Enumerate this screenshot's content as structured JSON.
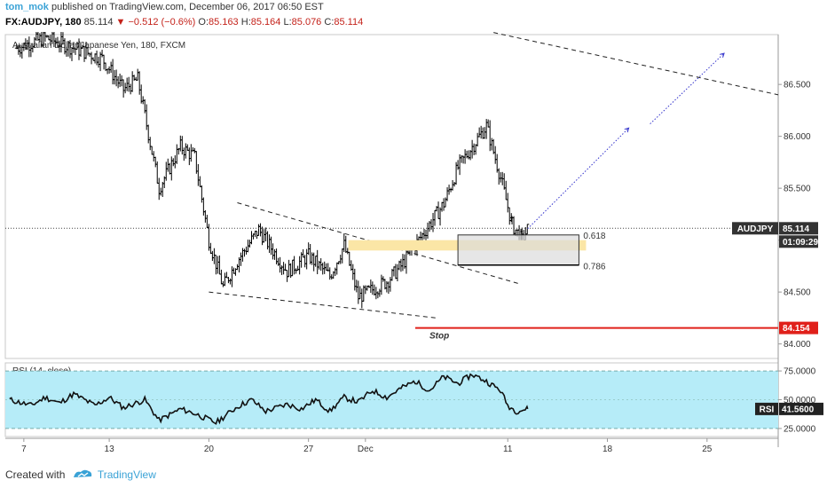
{
  "header": {
    "user": "tom_mok",
    "published_text": "published on TradingView.com, December 06, 2017 06:50 EST",
    "symbol": "FX:AUDJPY, 180",
    "last": "85.114",
    "change": "−0.512 (−0.6%)",
    "o_label": "O:",
    "o_value": "85.163",
    "h_label": "H:",
    "h_value": "85.164",
    "l_label": "L:",
    "l_value": "85.076",
    "c_label": "C:",
    "c_value": "85.114"
  },
  "footer": {
    "created_with": "Created with",
    "brand": "TradingView"
  },
  "colors": {
    "price_bar": "#000000",
    "stop": "#e0201a",
    "rsi_fill": "#b6ecf8",
    "fib_zone": "#fbe6a6",
    "box": "#dcdcdc",
    "projection": "#3333cc"
  },
  "chart_data": [
    {
      "type": "ohlc",
      "title": "Australian Dollar/Japanese Yen, 180, FXCM",
      "y_ticks": [
        84.0,
        84.5,
        85.0,
        85.5,
        86.0,
        86.5
      ],
      "y_tick_labels": [
        "84.000",
        "84.500",
        "85.000",
        "85.500",
        "86.000",
        "86.500"
      ],
      "ylim": [
        83.86,
        86.98
      ],
      "x_tick_labels": [
        "7",
        "13",
        "20",
        "27",
        "Dec",
        "11",
        "18",
        "25"
      ],
      "x_tick_days": [
        7,
        13,
        20,
        27,
        31,
        41,
        48,
        55
      ],
      "xlim_days": [
        5.7,
        60.0
      ],
      "price_tags": [
        {
          "label": "AUDJPY",
          "value": "85.114"
        },
        {
          "label": "",
          "value": "01:09:29"
        },
        {
          "label": "",
          "value": "84.154"
        }
      ],
      "current_price": 85.114,
      "stop_level": 84.154,
      "stop_label": "Stop",
      "fib_levels": [
        {
          "label": "0.618",
          "price": 85.05
        },
        {
          "label": "0.786",
          "price": 84.76
        }
      ],
      "fib_zone": [
        84.9,
        85.0
      ],
      "swing_points": [
        [
          6.5,
          86.85
        ],
        [
          8.5,
          86.95
        ],
        [
          10.5,
          86.85
        ],
        [
          12.5,
          86.75
        ],
        [
          14.0,
          86.45
        ],
        [
          15.0,
          86.55
        ],
        [
          16.5,
          85.5
        ],
        [
          18.0,
          85.9
        ],
        [
          19.0,
          85.8
        ],
        [
          20.0,
          85.0
        ],
        [
          21.0,
          84.55
        ],
        [
          22.0,
          84.8
        ],
        [
          23.5,
          85.1
        ],
        [
          24.5,
          84.9
        ],
        [
          25.5,
          84.7
        ],
        [
          27.0,
          84.85
        ],
        [
          28.5,
          84.65
        ],
        [
          29.5,
          84.95
        ],
        [
          30.5,
          84.45
        ],
        [
          32.5,
          84.6
        ],
        [
          33.5,
          84.75
        ],
        [
          35.0,
          85.05
        ],
        [
          36.5,
          85.35
        ],
        [
          37.5,
          85.7
        ],
        [
          38.5,
          85.9
        ],
        [
          39.5,
          86.1
        ],
        [
          40.5,
          85.6
        ],
        [
          41.3,
          85.15
        ],
        [
          42.0,
          85.0
        ],
        [
          42.4,
          85.11
        ]
      ]
    },
    {
      "type": "line",
      "title": "RSI (14, close)",
      "y_ticks": [
        25,
        50,
        75
      ],
      "y_tick_labels": [
        "25.0000",
        "50.0000",
        "75.0000"
      ],
      "ylim": [
        18,
        82
      ],
      "band": [
        25,
        75
      ],
      "last_label": "RSI",
      "last_value": "41.5600",
      "swing_points": [
        [
          6.0,
          50
        ],
        [
          7.5,
          45
        ],
        [
          8.5,
          52
        ],
        [
          9.5,
          47
        ],
        [
          10.5,
          55
        ],
        [
          12.0,
          45
        ],
        [
          13.0,
          52
        ],
        [
          14.0,
          43
        ],
        [
          15.5,
          50
        ],
        [
          16.5,
          32
        ],
        [
          18.0,
          42
        ],
        [
          19.0,
          38
        ],
        [
          20.5,
          30
        ],
        [
          22.0,
          44
        ],
        [
          23.0,
          50
        ],
        [
          24.0,
          40
        ],
        [
          25.5,
          46
        ],
        [
          26.5,
          42
        ],
        [
          27.5,
          50
        ],
        [
          28.5,
          40
        ],
        [
          29.5,
          52
        ],
        [
          30.5,
          48
        ],
        [
          31.5,
          58
        ],
        [
          32.5,
          52
        ],
        [
          33.5,
          60
        ],
        [
          34.5,
          66
        ],
        [
          35.5,
          58
        ],
        [
          36.5,
          70
        ],
        [
          37.5,
          64
        ],
        [
          38.5,
          72
        ],
        [
          39.5,
          66
        ],
        [
          40.5,
          58
        ],
        [
          41.0,
          45
        ],
        [
          41.6,
          40
        ],
        [
          42.4,
          42
        ]
      ]
    }
  ]
}
